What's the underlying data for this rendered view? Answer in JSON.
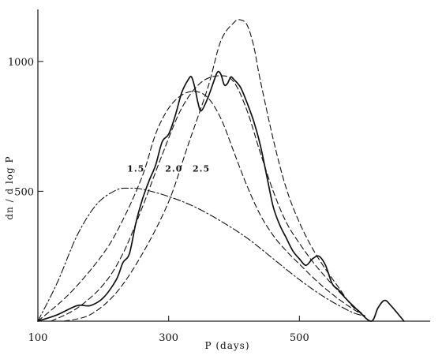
{
  "chart_data": {
    "type": "line",
    "title": "",
    "xlabel": "P (days)",
    "ylabel": "dn / d log P",
    "xlim": [
      100,
      700
    ],
    "ylim": [
      0,
      1200
    ],
    "x_ticks": [
      100,
      300,
      500
    ],
    "x_tick_labels": [
      "100",
      "300",
      "500"
    ],
    "y_ticks": [
      500,
      1000
    ],
    "y_tick_labels": [
      "500",
      "1000"
    ],
    "grid": false,
    "legend": "none",
    "annotations": [
      {
        "text": "1.5",
        "x": 250,
        "y": 575
      },
      {
        "text": "2.0",
        "x": 308,
        "y": 575
      },
      {
        "text": "2.5",
        "x": 350,
        "y": 575
      }
    ],
    "series": [
      {
        "style": "solid",
        "x": [
          100,
          130,
          160,
          180,
          200,
          220,
          230,
          240,
          250,
          260,
          270,
          280,
          290,
          300,
          310,
          320,
          330,
          335,
          340,
          345,
          350,
          360,
          370,
          375,
          380,
          385,
          390,
          395,
          400,
          410,
          420,
          430,
          440,
          450,
          460,
          470,
          480,
          490,
          500,
          510,
          520,
          530,
          540,
          550,
          560,
          570,
          590,
          610,
          620,
          630,
          640,
          660
        ],
        "y": [
          0,
          25,
          60,
          60,
          90,
          160,
          225,
          260,
          380,
          470,
          540,
          600,
          690,
          720,
          790,
          880,
          930,
          940,
          900,
          840,
          810,
          860,
          930,
          960,
          950,
          910,
          915,
          940,
          930,
          900,
          840,
          770,
          680,
          560,
          440,
          370,
          320,
          270,
          240,
          215,
          240,
          250,
          215,
          145,
          120,
          90,
          40,
          0,
          50,
          80,
          60,
          0
        ]
      },
      {
        "style": "dashed",
        "label": "1.5",
        "x": [
          100,
          150,
          200,
          230,
          260,
          280,
          300,
          320,
          340,
          360,
          380,
          400,
          420,
          440,
          460,
          480,
          500,
          520,
          540,
          560,
          580,
          600
        ],
        "y": [
          0,
          110,
          260,
          390,
          560,
          720,
          820,
          870,
          885,
          860,
          780,
          650,
          520,
          410,
          330,
          270,
          220,
          170,
          125,
          85,
          50,
          20
        ]
      },
      {
        "style": "dashed",
        "label": "2.0",
        "x": [
          120,
          160,
          200,
          230,
          260,
          290,
          320,
          350,
          380,
          400,
          420,
          440,
          460,
          480,
          500,
          520,
          540,
          560,
          580,
          600
        ],
        "y": [
          0,
          50,
          140,
          260,
          440,
          640,
          820,
          920,
          945,
          920,
          810,
          650,
          500,
          380,
          300,
          230,
          170,
          115,
          65,
          20
        ]
      },
      {
        "style": "dashed",
        "label": "2.5",
        "x": [
          140,
          180,
          220,
          260,
          300,
          330,
          360,
          380,
          400,
          410,
          420,
          430,
          440,
          460,
          480,
          500,
          520,
          540,
          560,
          580,
          600
        ],
        "y": [
          0,
          25,
          110,
          260,
          460,
          680,
          900,
          1080,
          1150,
          1160,
          1140,
          1060,
          930,
          700,
          510,
          380,
          280,
          200,
          130,
          60,
          20
        ]
      },
      {
        "style": "dashdot",
        "x": [
          100,
          130,
          160,
          190,
          220,
          240,
          260,
          300,
          340,
          380,
          420,
          460,
          500,
          540,
          580,
          600
        ],
        "y": [
          0,
          150,
          330,
          450,
          505,
          512,
          508,
          480,
          440,
          385,
          320,
          240,
          160,
          90,
          35,
          20
        ]
      }
    ]
  }
}
